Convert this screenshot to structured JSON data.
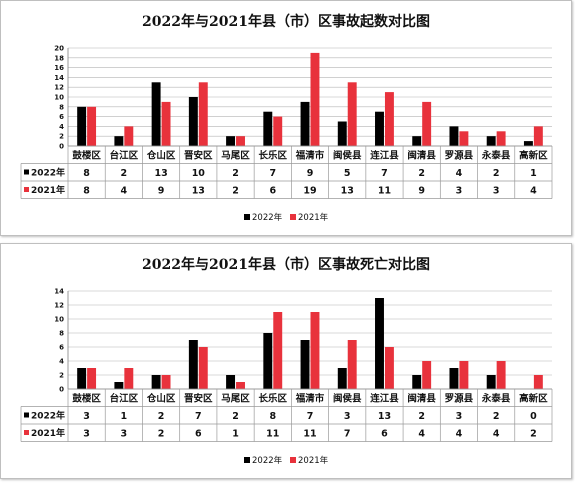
{
  "chart_data": [
    {
      "type": "bar",
      "title": "2022年与2021年县（市）区事故起数对比图",
      "categories": [
        "鼓楼区",
        "台江区",
        "仓山区",
        "晋安区",
        "马尾区",
        "长乐区",
        "福清市",
        "闽侯县",
        "连江县",
        "闽清县",
        "罗源县",
        "永泰县",
        "高新区"
      ],
      "yticks": [
        0,
        2,
        4,
        6,
        8,
        10,
        12,
        14,
        16,
        18,
        20
      ],
      "ylim": [
        0,
        20
      ],
      "grid": true,
      "legend_position": "bottom",
      "data_table": true,
      "series": [
        {
          "name": "2022年",
          "color": "#000000",
          "values": [
            8,
            2,
            13,
            10,
            2,
            7,
            9,
            5,
            7,
            2,
            4,
            2,
            1
          ]
        },
        {
          "name": "2021年",
          "color": "#e8323c",
          "values": [
            8,
            4,
            9,
            13,
            2,
            6,
            19,
            13,
            11,
            9,
            3,
            3,
            4
          ]
        }
      ]
    },
    {
      "type": "bar",
      "title": "2022年与2021年县（市）区事故死亡对比图",
      "categories": [
        "鼓楼区",
        "台江区",
        "仓山区",
        "晋安区",
        "马尾区",
        "长乐区",
        "福清市",
        "闽侯县",
        "连江县",
        "闽清县",
        "罗源县",
        "永泰县",
        "高新区"
      ],
      "yticks": [
        0,
        2,
        4,
        6,
        8,
        10,
        12,
        14
      ],
      "ylim": [
        0,
        14
      ],
      "grid": true,
      "legend_position": "bottom",
      "data_table": true,
      "series": [
        {
          "name": "2022年",
          "color": "#000000",
          "values": [
            3,
            1,
            2,
            7,
            2,
            8,
            7,
            3,
            13,
            2,
            3,
            2,
            0
          ]
        },
        {
          "name": "2021年",
          "color": "#e8323c",
          "values": [
            3,
            3,
            2,
            6,
            1,
            11,
            11,
            7,
            6,
            4,
            4,
            4,
            2
          ]
        }
      ]
    }
  ]
}
